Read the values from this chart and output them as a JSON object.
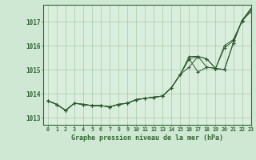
{
  "title": "Graphe pression niveau de la mer (hPa)",
  "bg_color": "#cfe8d4",
  "plot_bg_color": "#daeedd",
  "grid_color": "#a8c8a8",
  "line_color": "#2d5a2d",
  "xlim": [
    -0.5,
    23
  ],
  "ylim": [
    1012.7,
    1017.7
  ],
  "yticks": [
    1013,
    1014,
    1015,
    1016,
    1017
  ],
  "xticks": [
    0,
    1,
    2,
    3,
    4,
    5,
    6,
    7,
    8,
    9,
    10,
    11,
    12,
    13,
    14,
    15,
    16,
    17,
    18,
    19,
    20,
    21,
    22,
    23
  ],
  "series": [
    [
      1013.7,
      1013.55,
      1013.3,
      1013.6,
      1013.55,
      1013.5,
      1013.5,
      1013.45,
      1013.55,
      1013.6,
      1013.75,
      1013.8,
      1013.85,
      1013.9,
      1014.25,
      1014.8,
      1015.55,
      1015.55,
      1015.45,
      1015.05,
      1016.0,
      1016.25,
      1017.0,
      1017.5
    ],
    [
      1013.7,
      1013.55,
      1013.3,
      1013.6,
      1013.55,
      1013.5,
      1013.5,
      1013.45,
      1013.55,
      1013.6,
      1013.75,
      1013.8,
      1013.85,
      1013.9,
      1014.25,
      1014.8,
      1015.1,
      1015.55,
      1015.1,
      1015.05,
      1015.9,
      1016.2,
      1017.05,
      1017.55
    ],
    [
      1013.7,
      1013.55,
      1013.3,
      1013.6,
      1013.55,
      1013.5,
      1013.5,
      1013.45,
      1013.55,
      1013.6,
      1013.75,
      1013.8,
      1013.85,
      1013.9,
      1014.25,
      1014.8,
      1015.45,
      1014.9,
      1015.1,
      1015.05,
      1015.0,
      1016.1,
      1017.05,
      1017.5
    ],
    [
      1013.7,
      1013.55,
      1013.3,
      1013.6,
      1013.55,
      1013.5,
      1013.5,
      1013.45,
      1013.55,
      1013.6,
      1013.75,
      1013.8,
      1013.85,
      1013.9,
      1014.25,
      1014.8,
      1015.45,
      1015.55,
      1015.45,
      1015.05,
      1015.0,
      1016.1,
      1017.05,
      1017.4
    ]
  ]
}
